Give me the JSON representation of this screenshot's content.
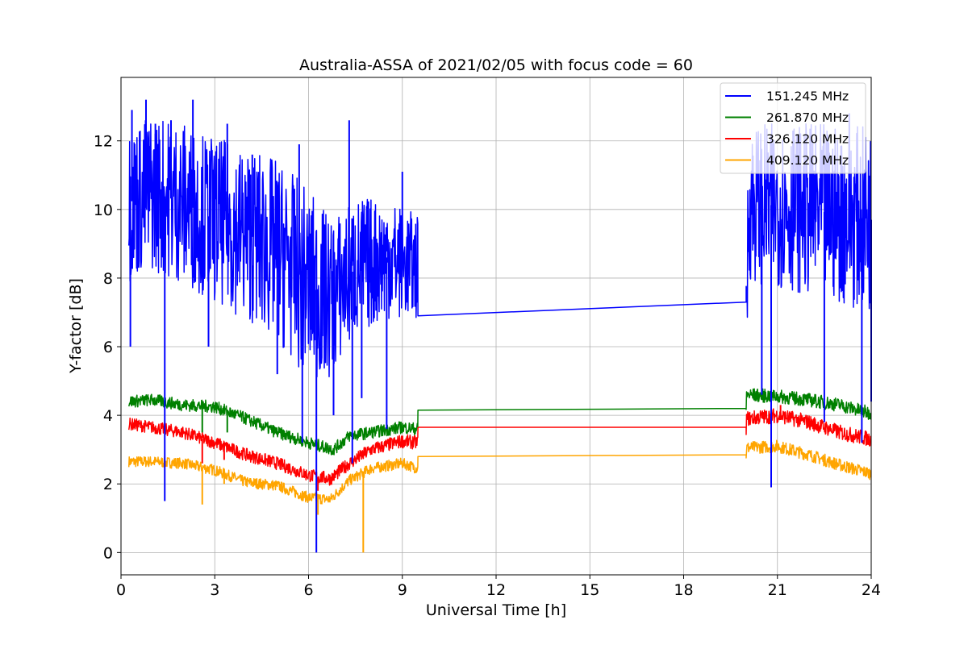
{
  "chart_data": {
    "type": "line",
    "title": "Australia-ASSA of 2021/02/05 with focus code = 60",
    "xlabel": "Universal Time [h]",
    "ylabel": "Y-factor [dB]",
    "xlim": [
      0,
      24
    ],
    "ylim": [
      -0.65,
      13.85
    ],
    "xticks": [
      0,
      3,
      6,
      9,
      12,
      15,
      18,
      21,
      24
    ],
    "yticks": [
      0,
      2,
      4,
      6,
      8,
      10,
      12
    ],
    "grid": true,
    "legend_position": "top-right",
    "data_gap": [
      9.5,
      20.0
    ],
    "series": [
      {
        "name": "151.245 MHz",
        "color": "#0000ff",
        "noisy": true,
        "points": [
          [
            0.25,
            10.2
          ],
          [
            1.0,
            10.5
          ],
          [
            2.0,
            10.2
          ],
          [
            3.0,
            9.7
          ],
          [
            4.0,
            9.3
          ],
          [
            5.0,
            8.8
          ],
          [
            6.0,
            7.8
          ],
          [
            6.7,
            7.4
          ],
          [
            7.5,
            8.3
          ],
          [
            8.5,
            8.6
          ],
          [
            9.5,
            8.3
          ],
          [
            9.5,
            6.9
          ],
          [
            20.0,
            7.3
          ],
          [
            20.1,
            10.2
          ],
          [
            22.0,
            10.0
          ],
          [
            24.0,
            9.7
          ]
        ],
        "band": [
          [
            0.25,
            2.3
          ],
          [
            3.0,
            2.4
          ],
          [
            6.0,
            2.8
          ],
          [
            7.0,
            2.2
          ],
          [
            9.5,
            1.5
          ],
          [
            20.0,
            2.3
          ],
          [
            24.0,
            2.7
          ]
        ],
        "spikes": [
          [
            0.3,
            6.0
          ],
          [
            0.35,
            12.9
          ],
          [
            0.8,
            13.2
          ],
          [
            1.1,
            12.5
          ],
          [
            1.4,
            1.5
          ],
          [
            1.6,
            12.6
          ],
          [
            2.3,
            13.2
          ],
          [
            2.8,
            6.0
          ],
          [
            3.4,
            12.5
          ],
          [
            4.2,
            11.6
          ],
          [
            5.0,
            5.2
          ],
          [
            5.7,
            11.9
          ],
          [
            5.8,
            3.2
          ],
          [
            6.25,
            0.0
          ],
          [
            6.8,
            4.0
          ],
          [
            7.3,
            12.6
          ],
          [
            7.4,
            2.6
          ],
          [
            7.7,
            4.5
          ],
          [
            8.5,
            3.6
          ],
          [
            9.0,
            11.1
          ],
          [
            20.5,
            4.6
          ],
          [
            20.8,
            1.9
          ],
          [
            21.5,
            12.3
          ],
          [
            22.5,
            3.8
          ],
          [
            23.3,
            12.8
          ],
          [
            23.7,
            3.2
          ],
          [
            24.0,
            4.4
          ]
        ]
      },
      {
        "name": "261.870 MHz",
        "color": "#008000",
        "noisy": true,
        "points": [
          [
            0.25,
            4.4
          ],
          [
            1.0,
            4.45
          ],
          [
            2.0,
            4.3
          ],
          [
            3.0,
            4.25
          ],
          [
            4.0,
            3.9
          ],
          [
            5.0,
            3.5
          ],
          [
            6.0,
            3.2
          ],
          [
            6.8,
            3.0
          ],
          [
            7.3,
            3.4
          ],
          [
            8.0,
            3.5
          ],
          [
            9.0,
            3.65
          ],
          [
            9.5,
            3.6
          ],
          [
            9.5,
            4.15
          ],
          [
            20.0,
            4.2
          ],
          [
            20.0,
            4.6
          ],
          [
            21.0,
            4.55
          ],
          [
            22.0,
            4.45
          ],
          [
            23.0,
            4.3
          ],
          [
            24.0,
            4.05
          ]
        ],
        "band": [
          [
            0.25,
            0.18
          ],
          [
            9.5,
            0.18
          ],
          [
            20.0,
            0.2
          ],
          [
            24.0,
            0.2
          ]
        ],
        "spikes": [
          [
            2.6,
            3.5
          ],
          [
            3.4,
            3.5
          ],
          [
            4.8,
            3.6
          ],
          [
            6.8,
            2.9
          ]
        ]
      },
      {
        "name": "326.120 MHz",
        "color": "#ff0000",
        "noisy": true,
        "points": [
          [
            0.25,
            3.75
          ],
          [
            1.0,
            3.65
          ],
          [
            2.0,
            3.5
          ],
          [
            3.0,
            3.2
          ],
          [
            4.0,
            2.85
          ],
          [
            5.0,
            2.6
          ],
          [
            6.0,
            2.25
          ],
          [
            6.7,
            2.15
          ],
          [
            7.3,
            2.6
          ],
          [
            8.0,
            3.0
          ],
          [
            9.0,
            3.25
          ],
          [
            9.5,
            3.2
          ],
          [
            9.5,
            3.65
          ],
          [
            20.0,
            3.65
          ],
          [
            20.0,
            3.9
          ],
          [
            21.0,
            4.0
          ],
          [
            22.0,
            3.8
          ],
          [
            23.0,
            3.5
          ],
          [
            24.0,
            3.3
          ]
        ],
        "band": [
          [
            0.25,
            0.18
          ],
          [
            9.5,
            0.2
          ],
          [
            20.0,
            0.22
          ],
          [
            24.0,
            0.22
          ]
        ],
        "spikes": [
          [
            2.6,
            2.6
          ],
          [
            3.3,
            2.7
          ],
          [
            6.3,
            1.8
          ],
          [
            21.1,
            4.3
          ]
        ]
      },
      {
        "name": "409.120 MHz",
        "color": "#ffa500",
        "noisy": true,
        "points": [
          [
            0.25,
            2.65
          ],
          [
            1.0,
            2.65
          ],
          [
            2.0,
            2.6
          ],
          [
            3.0,
            2.4
          ],
          [
            4.0,
            2.05
          ],
          [
            5.0,
            1.95
          ],
          [
            6.0,
            1.6
          ],
          [
            6.7,
            1.55
          ],
          [
            7.3,
            2.1
          ],
          [
            8.0,
            2.45
          ],
          [
            9.0,
            2.6
          ],
          [
            9.5,
            2.45
          ],
          [
            9.5,
            2.8
          ],
          [
            20.0,
            2.85
          ],
          [
            20.0,
            3.05
          ],
          [
            21.0,
            3.1
          ],
          [
            22.0,
            2.85
          ],
          [
            23.0,
            2.55
          ],
          [
            24.0,
            2.3
          ]
        ],
        "band": [
          [
            0.25,
            0.16
          ],
          [
            9.5,
            0.16
          ],
          [
            20.0,
            0.18
          ],
          [
            24.0,
            0.18
          ]
        ],
        "spikes": [
          [
            2.6,
            1.4
          ],
          [
            3.3,
            2.0
          ],
          [
            6.3,
            1.1
          ],
          [
            7.75,
            0.0
          ]
        ]
      }
    ]
  }
}
